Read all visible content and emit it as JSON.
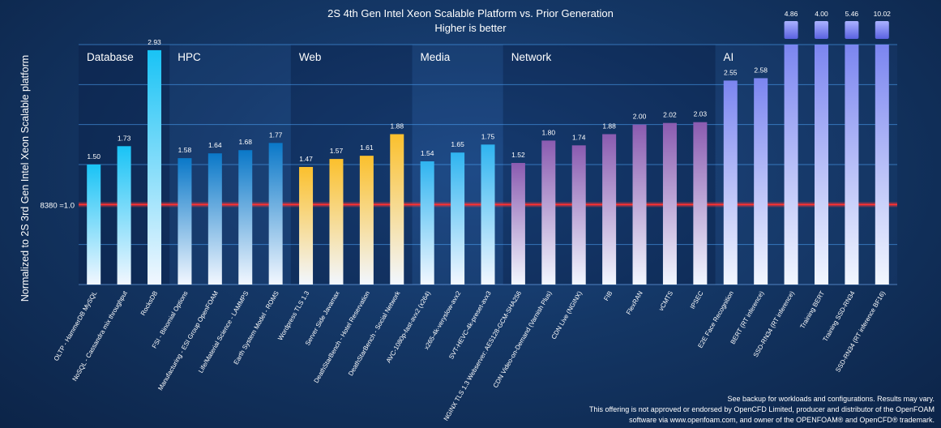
{
  "title": "2S 4th Gen Intel Xeon Scalable Platform vs. Prior Generation",
  "subtitle": "Higher is better",
  "ylabel": "Normalized to 2S 3rd Gen Intel Xeon Scalable platform",
  "baseline_label": "8380 =1.0",
  "footnotes": [
    "See backup for workloads and configurations. Results may vary.",
    "This offering is not approved or endorsed by OpenCFD Limited, producer and distributor of the OpenFOAM",
    "software via www.openfoam.com, and owner of the OPENFOAM® and OpenCFD® trademark."
  ],
  "chart_data": {
    "type": "bar",
    "title": "2S 4th Gen Intel Xeon Scalable Platform vs. Prior Generation",
    "subtitle": "Higher is better",
    "ylabel": "Normalized to 2S 3rd Gen Intel Xeon Scalable platform",
    "ylim": [
      0,
      3
    ],
    "baseline": 1.0,
    "grid": true,
    "groups": [
      {
        "name": "Database",
        "color": "#19c3f5"
      },
      {
        "name": "HPC",
        "color": "#0a78c8"
      },
      {
        "name": "Web",
        "color": "#fbc02d"
      },
      {
        "name": "Media",
        "color": "#2fb4f0"
      },
      {
        "name": "Network",
        "color": "#8a5bb0"
      },
      {
        "name": "AI",
        "color": "#7b85f0"
      }
    ],
    "categories": [
      {
        "label": "OLTP - HammerDB MySQL",
        "value": 1.5,
        "group": 0
      },
      {
        "label": "NoSQL - Cassandra mix throughput",
        "value": 1.73,
        "group": 0
      },
      {
        "label": "RocksDB",
        "value": 2.93,
        "group": 0
      },
      {
        "label": "FSI - Binomial Options",
        "value": 1.58,
        "group": 1
      },
      {
        "label": "Manufacturing - ESI Group OpenFOAM",
        "value": 1.64,
        "group": 1
      },
      {
        "label": "Life/Material Science - LAMMPS",
        "value": 1.68,
        "group": 1
      },
      {
        "label": "Earth System Model - ROMS",
        "value": 1.77,
        "group": 1
      },
      {
        "label": "Wordpress TLS 1.3",
        "value": 1.47,
        "group": 2
      },
      {
        "label": "Server Side Javamax",
        "value": 1.57,
        "group": 2
      },
      {
        "label": "DeathStarBench - Hotel Reservation",
        "value": 1.61,
        "group": 2
      },
      {
        "label": "DeathStarBench - Social Network",
        "value": 1.88,
        "group": 2
      },
      {
        "label": "AVC-1080p-fast-avx2 (x264)",
        "value": 1.54,
        "group": 3
      },
      {
        "label": "x265-4k-veryslow-avx2",
        "value": 1.65,
        "group": 3
      },
      {
        "label": "SVT-HEVC-4k-preset-avx3",
        "value": 1.75,
        "group": 3
      },
      {
        "label": "NGINX TLS 1.3 Webserver: AES128-GCM-SHA256",
        "value": 1.52,
        "group": 4
      },
      {
        "label": "CDN Video-on-Demand (Varnish Plus)",
        "value": 1.8,
        "group": 4
      },
      {
        "label": "CDN Live (NGINX)",
        "value": 1.74,
        "group": 4
      },
      {
        "label": "FIB",
        "value": 1.88,
        "group": 4
      },
      {
        "label": "FlexRAN",
        "value": 2.0,
        "group": 4
      },
      {
        "label": "vCMTS",
        "value": 2.02,
        "group": 4
      },
      {
        "label": "IPSEC",
        "value": 2.03,
        "group": 4
      },
      {
        "label": "E2E Face Recognition",
        "value": 2.55,
        "group": 5
      },
      {
        "label": "BERT (RT inference)",
        "value": 2.58,
        "group": 5
      },
      {
        "label": "SSD-RN34 (RT inference)",
        "value": 4.86,
        "group": 5
      },
      {
        "label": "Training BERT",
        "value": 4.0,
        "group": 5
      },
      {
        "label": "Training SSD-RN34",
        "value": 5.46,
        "group": 5
      },
      {
        "label": "SSD-RN34 (RT inference BF16)",
        "value": 10.02,
        "group": 5
      }
    ]
  }
}
